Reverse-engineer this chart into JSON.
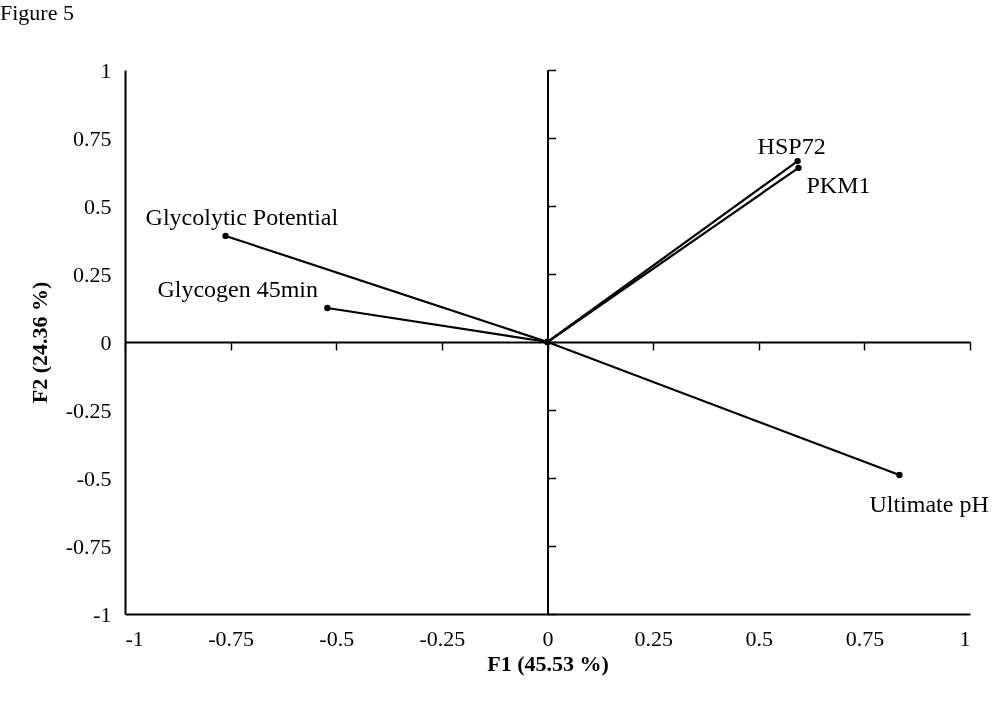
{
  "chart_data": {
    "type": "line",
    "title": "Figure 5",
    "xlabel": "F1 (45.53 %)",
    "ylabel": "F2 (24.36 %)",
    "xlim": [
      -1,
      1
    ],
    "ylim": [
      -1,
      1
    ],
    "xticks": [
      -1,
      -0.75,
      -0.5,
      -0.25,
      0,
      0.25,
      0.5,
      0.75,
      1
    ],
    "yticks": [
      -1,
      -0.75,
      -0.5,
      -0.25,
      0,
      0.25,
      0.5,
      0.75,
      1
    ],
    "marker": "circle",
    "line_style": "solid",
    "series": [
      {
        "name": "Glycolytic Potential",
        "color": "#000000",
        "x": [
          0,
          -0.762
        ],
        "values": [
          0,
          0.39
        ]
      },
      {
        "name": "Glycogen 45min",
        "color": "#000000",
        "x": [
          0,
          -0.521
        ],
        "values": [
          0,
          0.125
        ]
      },
      {
        "name": "HSP72",
        "color": "#000000",
        "x": [
          0,
          0.592
        ],
        "values": [
          0,
          0.665
        ]
      },
      {
        "name": "PKM1",
        "color": "#000000",
        "x": [
          0,
          0.594
        ],
        "values": [
          0,
          0.64
        ]
      },
      {
        "name": "Ultimate pH",
        "color": "#000000",
        "x": [
          0,
          0.833
        ],
        "values": [
          0,
          -0.489
        ]
      }
    ]
  }
}
